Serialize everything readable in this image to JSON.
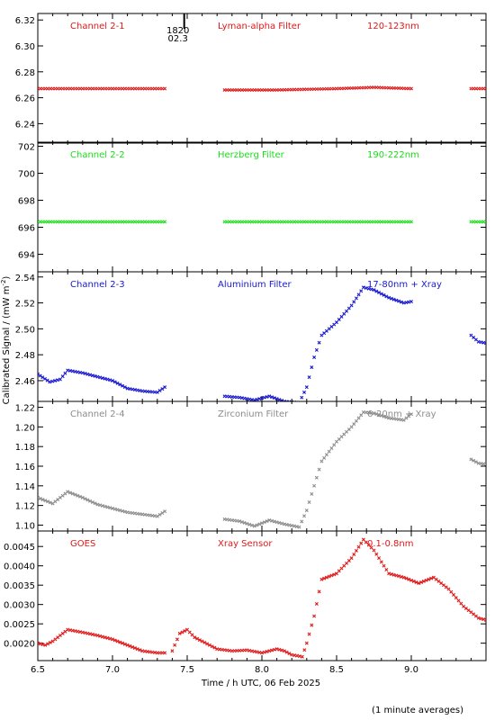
{
  "figure": {
    "xlabel": "Time / h UTC, 06 Feb 2025",
    "ylabel": "Calibrated Signal / (mW m",
    "ylabel_sup": "-2",
    "ylabel_close": ")",
    "footer": "(1 minute averages)",
    "marker_label_1": "1820",
    "marker_label_2": "02.3",
    "marker_time": 7.48
  },
  "chart_data": [
    {
      "type": "scatter",
      "channel": "Channel 2-1",
      "filter": "Lyman-alpha Filter",
      "band": "120-123nm",
      "color": "#e01818",
      "xlim": [
        6.5,
        9.5
      ],
      "ylim": [
        6.225,
        6.325
      ],
      "yticks": [
        6.24,
        6.26,
        6.28,
        6.3,
        6.32
      ],
      "ytick_labels": [
        "6.24",
        "6.26",
        "6.28",
        "6.30",
        "6.32"
      ],
      "segments": [
        {
          "start": 6.5,
          "end": 7.35,
          "points": [
            [
              6.5,
              6.267
            ],
            [
              7.0,
              6.267
            ],
            [
              7.35,
              6.267
            ]
          ]
        },
        {
          "start": 7.75,
          "end": 9.0,
          "points": [
            [
              7.75,
              6.266
            ],
            [
              8.1,
              6.266
            ],
            [
              8.5,
              6.267
            ],
            [
              8.75,
              6.268
            ],
            [
              9.0,
              6.267
            ]
          ]
        },
        {
          "start": 9.4,
          "end": 9.5,
          "points": [
            [
              9.4,
              6.267
            ],
            [
              9.5,
              6.267
            ]
          ]
        }
      ]
    },
    {
      "type": "scatter",
      "channel": "Channel 2-2",
      "filter": "Herzberg Filter",
      "band": "190-222nm",
      "color": "#18e018",
      "xlim": [
        6.5,
        9.5
      ],
      "ylim": [
        692.7,
        702.3
      ],
      "yticks": [
        694,
        696,
        698,
        700,
        702
      ],
      "ytick_labels": [
        "694",
        "696",
        "698",
        "700",
        "702"
      ],
      "segments": [
        {
          "start": 6.5,
          "end": 7.35,
          "points": [
            [
              6.5,
              696.4
            ],
            [
              7.35,
              696.4
            ]
          ]
        },
        {
          "start": 7.75,
          "end": 9.0,
          "points": [
            [
              7.75,
              696.4
            ],
            [
              9.0,
              696.4
            ]
          ]
        },
        {
          "start": 9.4,
          "end": 9.5,
          "points": [
            [
              9.4,
              696.4
            ],
            [
              9.5,
              696.4
            ]
          ]
        }
      ]
    },
    {
      "type": "scatter",
      "channel": "Channel 2-3",
      "filter": "Aluminium Filter",
      "band": "17-80nm + Xray",
      "color": "#1818d0",
      "xlim": [
        6.5,
        9.5
      ],
      "ylim": [
        2.444,
        2.544
      ],
      "yticks": [
        2.46,
        2.48,
        2.5,
        2.52,
        2.54
      ],
      "ytick_labels": [
        "2.46",
        "2.48",
        "2.50",
        "2.52",
        "2.54"
      ],
      "segments": [
        {
          "start": 6.5,
          "end": 7.35,
          "points": [
            [
              6.5,
              2.465
            ],
            [
              6.58,
              2.459
            ],
            [
              6.65,
              2.461
            ],
            [
              6.7,
              2.468
            ],
            [
              6.8,
              2.466
            ],
            [
              6.9,
              2.463
            ],
            [
              7.0,
              2.46
            ],
            [
              7.1,
              2.454
            ],
            [
              7.2,
              2.452
            ],
            [
              7.3,
              2.451
            ],
            [
              7.35,
              2.455
            ]
          ]
        },
        {
          "start": 7.75,
          "end": 9.0,
          "points": [
            [
              7.75,
              2.448
            ],
            [
              7.85,
              2.447
            ],
            [
              7.95,
              2.445
            ],
            [
              8.05,
              2.448
            ],
            [
              8.15,
              2.444
            ],
            [
              8.25,
              2.443
            ],
            [
              8.3,
              2.455
            ],
            [
              8.35,
              2.478
            ],
            [
              8.4,
              2.495
            ],
            [
              8.5,
              2.505
            ],
            [
              8.6,
              2.518
            ],
            [
              8.68,
              2.532
            ],
            [
              8.75,
              2.53
            ],
            [
              8.85,
              2.524
            ],
            [
              8.95,
              2.52
            ],
            [
              9.0,
              2.521
            ]
          ]
        },
        {
          "start": 9.4,
          "end": 9.5,
          "points": [
            [
              9.4,
              2.495
            ],
            [
              9.45,
              2.49
            ],
            [
              9.5,
              2.489
            ]
          ]
        }
      ]
    },
    {
      "type": "scatter",
      "channel": "Channel 2-4",
      "filter": "Zirconium Filter",
      "band": "6-20nm + Xray",
      "color": "#8c8c8c",
      "xlim": [
        6.5,
        9.5
      ],
      "ylim": [
        1.094,
        1.226
      ],
      "yticks": [
        1.1,
        1.12,
        1.14,
        1.16,
        1.18,
        1.2,
        1.22
      ],
      "ytick_labels": [
        "1.10",
        "1.12",
        "1.14",
        "1.16",
        "1.18",
        "1.20",
        "1.22"
      ],
      "segments": [
        {
          "start": 6.5,
          "end": 7.35,
          "points": [
            [
              6.5,
              1.128
            ],
            [
              6.6,
              1.122
            ],
            [
              6.7,
              1.134
            ],
            [
              6.8,
              1.128
            ],
            [
              6.9,
              1.121
            ],
            [
              7.0,
              1.117
            ],
            [
              7.1,
              1.113
            ],
            [
              7.2,
              1.111
            ],
            [
              7.3,
              1.109
            ],
            [
              7.35,
              1.114
            ]
          ]
        },
        {
          "start": 7.75,
          "end": 9.0,
          "points": [
            [
              7.75,
              1.106
            ],
            [
              7.85,
              1.104
            ],
            [
              7.95,
              1.099
            ],
            [
              8.05,
              1.105
            ],
            [
              8.15,
              1.101
            ],
            [
              8.25,
              1.098
            ],
            [
              8.3,
              1.115
            ],
            [
              8.35,
              1.14
            ],
            [
              8.4,
              1.165
            ],
            [
              8.5,
              1.185
            ],
            [
              8.6,
              1.2
            ],
            [
              8.68,
              1.215
            ],
            [
              8.75,
              1.214
            ],
            [
              8.85,
              1.209
            ],
            [
              8.95,
              1.207
            ],
            [
              9.0,
              1.213
            ]
          ]
        },
        {
          "start": 9.4,
          "end": 9.5,
          "points": [
            [
              9.4,
              1.167
            ],
            [
              9.45,
              1.163
            ],
            [
              9.5,
              1.162
            ]
          ]
        }
      ]
    },
    {
      "type": "scatter",
      "channel": "GOES",
      "filter": "Xray Sensor",
      "band": "0.1-0.8nm",
      "color": "#e01818",
      "xlim": [
        6.5,
        9.5
      ],
      "ylim": [
        0.00155,
        0.0049
      ],
      "yticks": [
        0.002,
        0.0025,
        0.003,
        0.0035,
        0.004,
        0.0045
      ],
      "ytick_labels": [
        "0.0020",
        "0.0025",
        "0.0030",
        "0.0035",
        "0.0040",
        "0.0045"
      ],
      "segments": [
        {
          "start": 6.5,
          "end": 7.35,
          "points": [
            [
              6.5,
              0.002
            ],
            [
              6.55,
              0.00195
            ],
            [
              6.6,
              0.00205
            ],
            [
              6.7,
              0.00235
            ],
            [
              6.8,
              0.00228
            ],
            [
              6.9,
              0.0022
            ],
            [
              7.0,
              0.0021
            ],
            [
              7.1,
              0.00195
            ],
            [
              7.2,
              0.0018
            ],
            [
              7.3,
              0.00175
            ],
            [
              7.35,
              0.00175
            ]
          ]
        },
        {
          "start": 7.35,
          "end": 9.5,
          "points": [
            [
              7.4,
              0.0018
            ],
            [
              7.45,
              0.00225
            ],
            [
              7.5,
              0.00235
            ],
            [
              7.55,
              0.00215
            ],
            [
              7.7,
              0.00185
            ],
            [
              7.8,
              0.0018
            ],
            [
              7.9,
              0.00182
            ],
            [
              8.0,
              0.00175
            ],
            [
              8.1,
              0.00185
            ],
            [
              8.15,
              0.0018
            ],
            [
              8.2,
              0.0017
            ],
            [
              8.27,
              0.00165
            ],
            [
              8.3,
              0.002
            ],
            [
              8.35,
              0.0027
            ],
            [
              8.4,
              0.00365
            ],
            [
              8.5,
              0.0038
            ],
            [
              8.6,
              0.0042
            ],
            [
              8.68,
              0.00468
            ],
            [
              8.75,
              0.0044
            ],
            [
              8.85,
              0.0038
            ],
            [
              8.95,
              0.0037
            ],
            [
              9.05,
              0.00355
            ],
            [
              9.15,
              0.0037
            ],
            [
              9.25,
              0.0034
            ],
            [
              9.35,
              0.00295
            ],
            [
              9.45,
              0.00265
            ],
            [
              9.5,
              0.0026
            ]
          ]
        }
      ]
    }
  ],
  "xaxis": {
    "xlim": [
      6.5,
      9.5
    ],
    "ticks": [
      6.5,
      7.0,
      7.5,
      8.0,
      8.5,
      9.0
    ],
    "tick_labels": [
      "6.5",
      "7.0",
      "7.5",
      "8.0",
      "8.5",
      "9.0"
    ]
  }
}
